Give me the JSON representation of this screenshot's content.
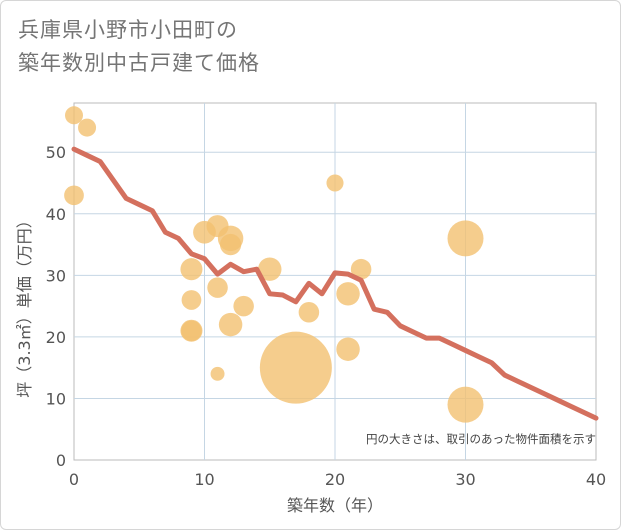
{
  "chart_data": {
    "type": "scatter",
    "title_line1": "兵庫県小野市小田町の",
    "title_line2": "築年数別中古戸建て価格",
    "xlabel": "築年数（年）",
    "ylabel": "坪（3.3㎡）単価（万円）",
    "xlim": [
      0,
      40
    ],
    "ylim": [
      0,
      58
    ],
    "xticks": [
      0,
      10,
      20,
      30,
      40
    ],
    "yticks": [
      0,
      10,
      20,
      30,
      40,
      50
    ],
    "grid": true,
    "annotation": "円の大きさは、取引のあった物件面積を示す",
    "colors": {
      "bubble": "#f2c070",
      "line": "#d4705e",
      "grid": "#c5d6e4"
    },
    "points": [
      {
        "x": 0,
        "y": 56,
        "size": 1
      },
      {
        "x": 1,
        "y": 54,
        "size": 1
      },
      {
        "x": 0,
        "y": 43,
        "size": 1.2
      },
      {
        "x": 9,
        "y": 31,
        "size": 1.5
      },
      {
        "x": 9,
        "y": 26,
        "size": 1.2
      },
      {
        "x": 9,
        "y": 21,
        "size": 1.5
      },
      {
        "x": 9,
        "y": 21,
        "size": 1.3
      },
      {
        "x": 10,
        "y": 37,
        "size": 1.6
      },
      {
        "x": 11,
        "y": 38,
        "size": 1.5
      },
      {
        "x": 11,
        "y": 28,
        "size": 1.3
      },
      {
        "x": 11,
        "y": 14,
        "size": 0.6
      },
      {
        "x": 12,
        "y": 36,
        "size": 2
      },
      {
        "x": 12,
        "y": 35,
        "size": 1.4
      },
      {
        "x": 12,
        "y": 22,
        "size": 1.7
      },
      {
        "x": 13,
        "y": 25,
        "size": 1.3
      },
      {
        "x": 15,
        "y": 31,
        "size": 1.7
      },
      {
        "x": 17,
        "y": 15,
        "size": 16
      },
      {
        "x": 18,
        "y": 24,
        "size": 1.3
      },
      {
        "x": 20,
        "y": 45,
        "size": 0.9
      },
      {
        "x": 21,
        "y": 27,
        "size": 1.7
      },
      {
        "x": 21,
        "y": 18,
        "size": 1.7
      },
      {
        "x": 22,
        "y": 31,
        "size": 1.3
      },
      {
        "x": 30,
        "y": 36,
        "size": 4
      },
      {
        "x": 30,
        "y": 9,
        "size": 4
      }
    ],
    "trend_line": {
      "x": [
        0,
        1,
        2,
        3,
        4,
        5,
        6,
        7,
        8,
        9,
        10,
        11,
        12,
        13,
        14,
        15,
        16,
        17,
        18,
        19,
        20,
        21,
        22,
        23,
        24,
        25,
        26,
        27,
        28,
        29,
        30,
        31,
        32,
        33,
        34,
        35,
        36,
        37,
        38,
        39,
        40
      ],
      "y": [
        50.5,
        49.5,
        48.5,
        45.5,
        42.5,
        41.5,
        40.5,
        37,
        36,
        33.5,
        32.7,
        30.2,
        31.8,
        30.6,
        31,
        27,
        26.8,
        25.7,
        28.7,
        27,
        30.4,
        30.2,
        29.2,
        24.5,
        24,
        21.8,
        20.8,
        19.8,
        19.8,
        18.8,
        17.8,
        16.8,
        15.8,
        13.8,
        12.8,
        11.8,
        10.8,
        9.8,
        8.8,
        7.8,
        6.8
      ]
    }
  }
}
